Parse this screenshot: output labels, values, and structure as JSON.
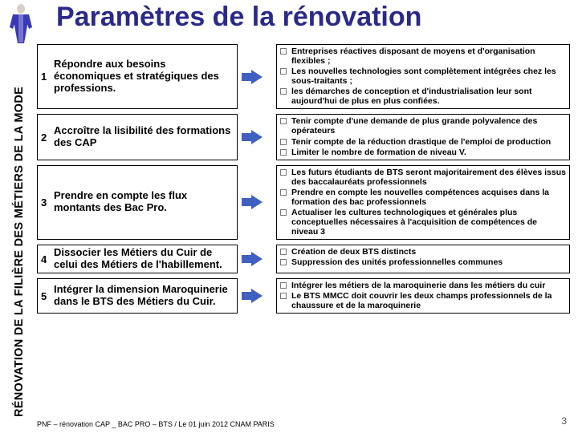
{
  "title": "Paramètres de la rénovation",
  "sidebar": "RÉNOVATION DE LA FILIÈRE DES MÉTIERS DE LA MODE",
  "rows": [
    {
      "num": "1",
      "left": "Répondre aux besoins économiques et stratégiques des professions.",
      "bullets": [
        "Entreprises réactives disposant de moyens et d'organisation flexibles ;",
        "Les nouvelles technologies sont complètement intégrées chez les sous-traitants ;",
        "les démarches de conception et d'industrialisation leur sont aujourd'hui de plus en plus confiées."
      ]
    },
    {
      "num": "2",
      "left": "Accroître la lisibilité des formations des CAP",
      "bullets": [
        "Tenir compte d'une demande de plus grande polyvalence des opérateurs",
        "Tenir compte de la réduction drastique de l'emploi de production",
        "Limiter le nombre de formation de niveau V."
      ]
    },
    {
      "num": "3",
      "left": "Prendre en compte les flux montants des Bac Pro.",
      "bullets": [
        "Les futurs étudiants de BTS seront majoritairement des élèves issus des baccalauréats professionnels",
        "Prendre en compte les nouvelles compétences acquises dans la formation des bac professionnels",
        "Actualiser les cultures technologiques et générales plus conceptuelles nécessaires à l'acquisition de compétences de niveau 3"
      ]
    },
    {
      "num": "4",
      "left": "Dissocier les Métiers du Cuir de celui des Métiers de l'habillement.",
      "bullets": [
        "Création de deux BTS distincts",
        "Suppression des unités professionnelles communes"
      ]
    },
    {
      "num": "5",
      "left": "Intégrer la dimension Maroquinerie dans le BTS des Métiers du Cuir.",
      "bullets": [
        "Intégrer les métiers de la maroquinerie dans les métiers du cuir",
        "Le BTS MMCC doit couvrir les deux champs professionnels de la chaussure et de la maroquinerie"
      ]
    }
  ],
  "footer": "PNF – rénovation CAP _ BAC PRO – BTS / Le 01 juin 2012 CNAM PARIS",
  "pagenum": "3"
}
